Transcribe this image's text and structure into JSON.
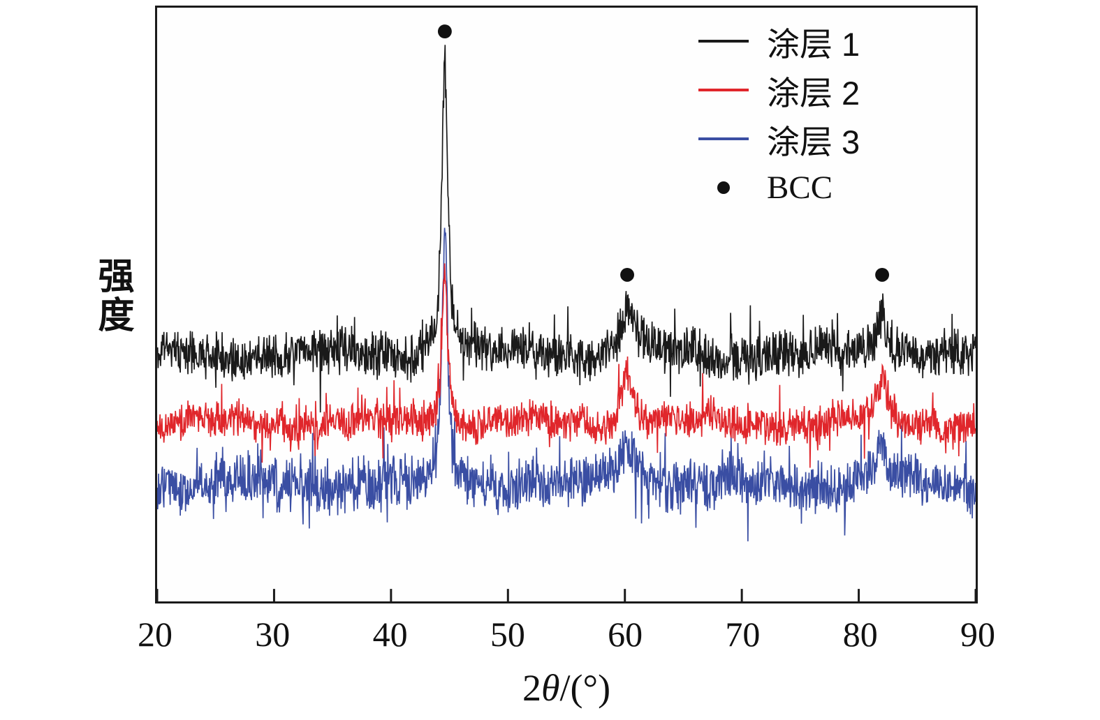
{
  "chart_data": {
    "type": "line",
    "title": "",
    "ylabel": "强度",
    "xlabel_parts": {
      "prefix": "2",
      "theta": "θ",
      "suffix": "/(°)"
    },
    "xlim": [
      20,
      90
    ],
    "x_ticks": [
      "20",
      "30",
      "40",
      "50",
      "60",
      "70",
      "80",
      "90"
    ],
    "grid": false,
    "legend_position": "top-right-inside",
    "bcc_label": "BCC",
    "marker_color": "#111111",
    "bcc_markers": [
      {
        "x": 44.6,
        "v": 0.96
      },
      {
        "x": 60.2,
        "v": 0.55
      },
      {
        "x": 82.0,
        "v": 0.55
      }
    ],
    "series": [
      {
        "name": "涂层 1",
        "color": "#1a1a1a",
        "seed": 11,
        "baseline": 0.415,
        "noise": 0.032,
        "peaks": [
          {
            "x": 44.6,
            "h": 0.5,
            "w": 0.3
          },
          {
            "x": 60.2,
            "h": 0.085,
            "w": 0.7
          },
          {
            "x": 82.0,
            "h": 0.075,
            "w": 0.55
          }
        ]
      },
      {
        "name": "涂层 2",
        "color": "#e0262b",
        "seed": 22,
        "baseline": 0.3,
        "noise": 0.026,
        "peaks": [
          {
            "x": 44.6,
            "h": 0.26,
            "w": 0.28
          },
          {
            "x": 60.2,
            "h": 0.09,
            "w": 0.6
          },
          {
            "x": 82.0,
            "h": 0.07,
            "w": 0.5
          }
        ]
      },
      {
        "name": "涂层 3",
        "color": "#3a4ea3",
        "seed": 33,
        "baseline": 0.197,
        "noise": 0.035,
        "peaks": [
          {
            "x": 44.6,
            "h": 0.43,
            "w": 0.28
          },
          {
            "x": 60.2,
            "h": 0.085,
            "w": 0.7
          },
          {
            "x": 82.0,
            "h": 0.07,
            "w": 0.5
          }
        ]
      }
    ]
  }
}
